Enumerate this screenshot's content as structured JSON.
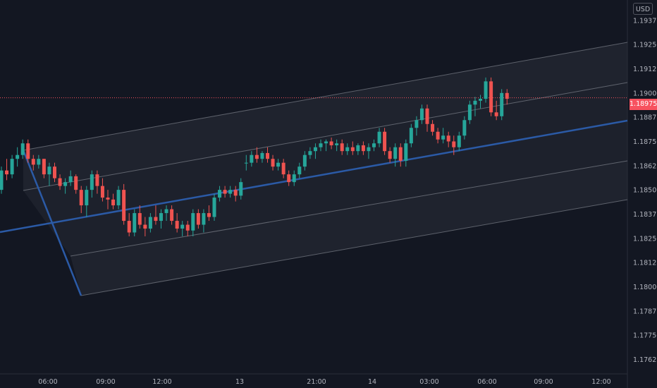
{
  "currency": "USD",
  "last_price": "1.18975",
  "colors": {
    "background": "#131722",
    "up": "#26a69a",
    "down": "#ef5350",
    "pitchfork_median": "#2b5aa6",
    "pitchfork_outer": "#b2b5be",
    "price_line": "#f7525f"
  },
  "chart_data": {
    "type": "candlestick",
    "y_ticks": [
      "1.19375",
      "1.19250",
      "1.19125",
      "1.19000",
      "1.18875",
      "1.18750",
      "1.18625",
      "1.18500",
      "1.18375",
      "1.18250",
      "1.18125",
      "1.18000",
      "1.17875",
      "1.17750",
      "1.17625"
    ],
    "x_ticks": [
      "06:00",
      "09:00",
      "12:00",
      "13",
      "21:00",
      "14",
      "03:00",
      "06:00",
      "09:00",
      "12:00"
    ],
    "ylim": [
      1.1755,
      1.1948
    ],
    "last_price": 1.18975,
    "candles": [
      [
        1.185,
        1.1862,
        1.1848,
        1.186
      ],
      [
        1.186,
        1.1866,
        1.1855,
        1.1858
      ],
      [
        1.1858,
        1.1868,
        1.1856,
        1.1866
      ],
      [
        1.1866,
        1.1872,
        1.1862,
        1.1868
      ],
      [
        1.1868,
        1.1876,
        1.1866,
        1.1874
      ],
      [
        1.1874,
        1.1876,
        1.1864,
        1.1866
      ],
      [
        1.1866,
        1.1868,
        1.186,
        1.1863
      ],
      [
        1.1863,
        1.1868,
        1.1861,
        1.1866
      ],
      [
        1.1866,
        1.1866,
        1.1856,
        1.1858
      ],
      [
        1.1858,
        1.1864,
        1.1852,
        1.1862
      ],
      [
        1.1862,
        1.1864,
        1.1854,
        1.1856
      ],
      [
        1.1856,
        1.1858,
        1.185,
        1.1852
      ],
      [
        1.1852,
        1.1856,
        1.1848,
        1.1854
      ],
      [
        1.1854,
        1.186,
        1.1852,
        1.1857
      ],
      [
        1.1857,
        1.1858,
        1.1848,
        1.185
      ],
      [
        1.185,
        1.1852,
        1.1838,
        1.1842
      ],
      [
        1.1842,
        1.1852,
        1.1836,
        1.185
      ],
      [
        1.185,
        1.186,
        1.1846,
        1.1858
      ],
      [
        1.1858,
        1.186,
        1.1848,
        1.1852
      ],
      [
        1.1852,
        1.1856,
        1.1844,
        1.1846
      ],
      [
        1.1846,
        1.185,
        1.184,
        1.1845
      ],
      [
        1.1845,
        1.1848,
        1.184,
        1.1842
      ],
      [
        1.1842,
        1.1852,
        1.184,
        1.185
      ],
      [
        1.185,
        1.1853,
        1.1832,
        1.1834
      ],
      [
        1.1834,
        1.1838,
        1.1826,
        1.1828
      ],
      [
        1.1828,
        1.184,
        1.1826,
        1.1838
      ],
      [
        1.1838,
        1.1842,
        1.183,
        1.1832
      ],
      [
        1.1832,
        1.1836,
        1.1826,
        1.183
      ],
      [
        1.183,
        1.1838,
        1.1828,
        1.1836
      ],
      [
        1.1836,
        1.1842,
        1.1832,
        1.1834
      ],
      [
        1.1834,
        1.184,
        1.183,
        1.1838
      ],
      [
        1.1838,
        1.1842,
        1.1834,
        1.184
      ],
      [
        1.184,
        1.1842,
        1.1832,
        1.1834
      ],
      [
        1.1834,
        1.1838,
        1.1828,
        1.183
      ],
      [
        1.183,
        1.1834,
        1.1826,
        1.1832
      ],
      [
        1.1832,
        1.1834,
        1.1826,
        1.1829
      ],
      [
        1.1829,
        1.184,
        1.1826,
        1.1838
      ],
      [
        1.1838,
        1.184,
        1.183,
        1.1832
      ],
      [
        1.1832,
        1.184,
        1.1828,
        1.1838
      ],
      [
        1.1838,
        1.1842,
        1.1834,
        1.1836
      ],
      [
        1.1836,
        1.1848,
        1.1834,
        1.1846
      ],
      [
        1.1846,
        1.1852,
        1.1844,
        1.185
      ],
      [
        1.185,
        1.1852,
        1.1846,
        1.1848
      ],
      [
        1.1848,
        1.1852,
        1.1846,
        1.185
      ],
      [
        1.185,
        1.1852,
        1.1844,
        1.1847
      ],
      [
        1.1847,
        1.1856,
        1.1845,
        1.1854
      ],
      [
        1.1864,
        1.1868,
        1.186,
        1.1864
      ],
      [
        1.1864,
        1.187,
        1.1862,
        1.1868
      ],
      [
        1.1868,
        1.1872,
        1.1864,
        1.1866
      ],
      [
        1.1866,
        1.187,
        1.1864,
        1.1869
      ],
      [
        1.1869,
        1.1872,
        1.1864,
        1.1866
      ],
      [
        1.1866,
        1.1868,
        1.186,
        1.1862
      ],
      [
        1.1862,
        1.1866,
        1.186,
        1.1864
      ],
      [
        1.1864,
        1.1866,
        1.1856,
        1.1858
      ],
      [
        1.1858,
        1.186,
        1.1852,
        1.1854
      ],
      [
        1.1854,
        1.186,
        1.1852,
        1.1858
      ],
      [
        1.1858,
        1.1864,
        1.1856,
        1.1862
      ],
      [
        1.1862,
        1.187,
        1.186,
        1.1868
      ],
      [
        1.1868,
        1.1872,
        1.1866,
        1.187
      ],
      [
        1.187,
        1.1874,
        1.1866,
        1.1872
      ],
      [
        1.1872,
        1.1876,
        1.187,
        1.1874
      ],
      [
        1.1874,
        1.1876,
        1.187,
        1.1875
      ],
      [
        1.1875,
        1.1877,
        1.1871,
        1.1873
      ],
      [
        1.1873,
        1.1876,
        1.187,
        1.1874
      ],
      [
        1.1874,
        1.1876,
        1.1868,
        1.187
      ],
      [
        1.187,
        1.1874,
        1.1868,
        1.1872
      ],
      [
        1.1872,
        1.1875,
        1.1868,
        1.187
      ],
      [
        1.187,
        1.1874,
        1.1868,
        1.1873
      ],
      [
        1.1873,
        1.1875,
        1.1868,
        1.187
      ],
      [
        1.187,
        1.1874,
        1.1866,
        1.1872
      ],
      [
        1.1872,
        1.1876,
        1.187,
        1.1874
      ],
      [
        1.1874,
        1.1882,
        1.1872,
        1.188
      ],
      [
        1.188,
        1.1882,
        1.1868,
        1.187
      ],
      [
        1.187,
        1.1872,
        1.1864,
        1.1866
      ],
      [
        1.1866,
        1.1874,
        1.1862,
        1.1872
      ],
      [
        1.1872,
        1.1874,
        1.1862,
        1.1865
      ],
      [
        1.1865,
        1.1876,
        1.1862,
        1.1874
      ],
      [
        1.1874,
        1.1884,
        1.1872,
        1.1882
      ],
      [
        1.1882,
        1.1888,
        1.1878,
        1.1886
      ],
      [
        1.1886,
        1.1894,
        1.1884,
        1.1892
      ],
      [
        1.1892,
        1.1894,
        1.188,
        1.1884
      ],
      [
        1.1884,
        1.1886,
        1.1878,
        1.188
      ],
      [
        1.188,
        1.1882,
        1.1874,
        1.1876
      ],
      [
        1.1876,
        1.1882,
        1.1874,
        1.1878
      ],
      [
        1.1878,
        1.188,
        1.1872,
        1.1875
      ],
      [
        1.1875,
        1.1878,
        1.1868,
        1.1872
      ],
      [
        1.1872,
        1.188,
        1.187,
        1.1878
      ],
      [
        1.1878,
        1.1888,
        1.1876,
        1.1886
      ],
      [
        1.1886,
        1.1896,
        1.1884,
        1.1894
      ],
      [
        1.1894,
        1.1898,
        1.1888,
        1.1896
      ],
      [
        1.1896,
        1.1899,
        1.1892,
        1.1897
      ],
      [
        1.1897,
        1.1908,
        1.1895,
        1.1906
      ],
      [
        1.1906,
        1.1908,
        1.1888,
        1.189
      ],
      [
        1.189,
        1.1896,
        1.1886,
        1.1888
      ],
      [
        1.1888,
        1.1902,
        1.1886,
        1.19
      ],
      [
        1.19,
        1.1902,
        1.1894,
        1.1897
      ]
    ]
  }
}
